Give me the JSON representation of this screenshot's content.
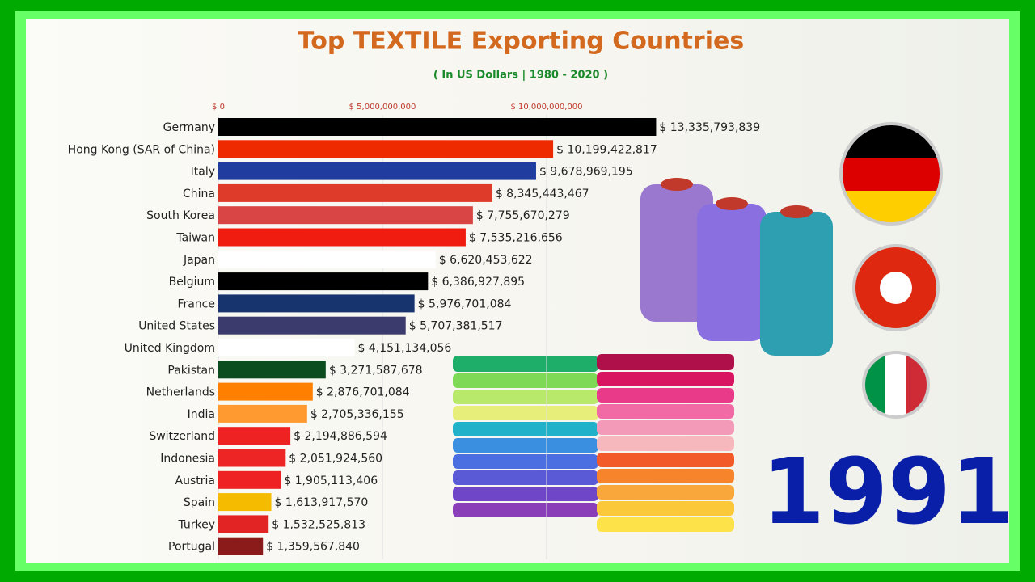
{
  "chart_data": {
    "type": "bar",
    "orientation": "horizontal",
    "title": "Top TEXTILE Exporting Countries",
    "subtitle": "( In US Dollars | 1980 - 2020 )",
    "year": "1991",
    "categories": [
      "Germany",
      "Hong Kong (SAR of China)",
      "Italy",
      "China",
      "South Korea",
      "Taiwan",
      "Japan",
      "Belgium",
      "France",
      "United States",
      "United Kingdom",
      "Pakistan",
      "Netherlands",
      "India",
      "Switzerland",
      "Indonesia",
      "Austria",
      "Spain",
      "Turkey",
      "Portugal"
    ],
    "values": [
      13335793839,
      10199422817,
      9678969195,
      8345443467,
      7755670279,
      7535216656,
      6620453622,
      6386927895,
      5976701084,
      5707381517,
      4151134056,
      3271587678,
      2876701084,
      2705336155,
      2194886594,
      2051924560,
      1905113406,
      1613917570,
      1532525813,
      1359567840
    ],
    "value_labels": [
      "$ 13,335,793,839",
      "$ 10,199,422,817",
      "$ 9,678,969,195",
      "$ 8,345,443,467",
      "$ 7,755,670,279",
      "$ 7,535,216,656",
      "$ 6,620,453,622",
      "$ 6,386,927,895",
      "$ 5,976,701,084",
      "$ 5,707,381,517",
      "$ 4,151,134,056",
      "$ 3,271,587,678",
      "$ 2,876,701,084",
      "$ 2,705,336,155",
      "$ 2,194,886,594",
      "$ 2,051,924,560",
      "$ 1,905,113,406",
      "$ 1,613,917,570",
      "$ 1,532,525,813",
      "$ 1,359,567,840"
    ],
    "colors": [
      "#000000",
      "#ee2a00",
      "#1f3c9e",
      "#de3b2b",
      "#d94444",
      "#f01c10",
      "#ffffff",
      "#000000",
      "#17346e",
      "#3c3b6e",
      "#ffffff",
      "#0b4d1e",
      "#ff7f00",
      "#ff9a30",
      "#ee2222",
      "#ee2525",
      "#ee2222",
      "#f5bb00",
      "#e32424",
      "#8b1a1a"
    ],
    "xlim": [
      0,
      15000000000
    ],
    "xticks": [
      {
        "value": 0,
        "label": "$ 0"
      },
      {
        "value": 5000000000,
        "label": "$ 5,000,000,000"
      },
      {
        "value": 10000000000,
        "label": "$ 10,000,000,000"
      }
    ],
    "grid": true
  }
}
